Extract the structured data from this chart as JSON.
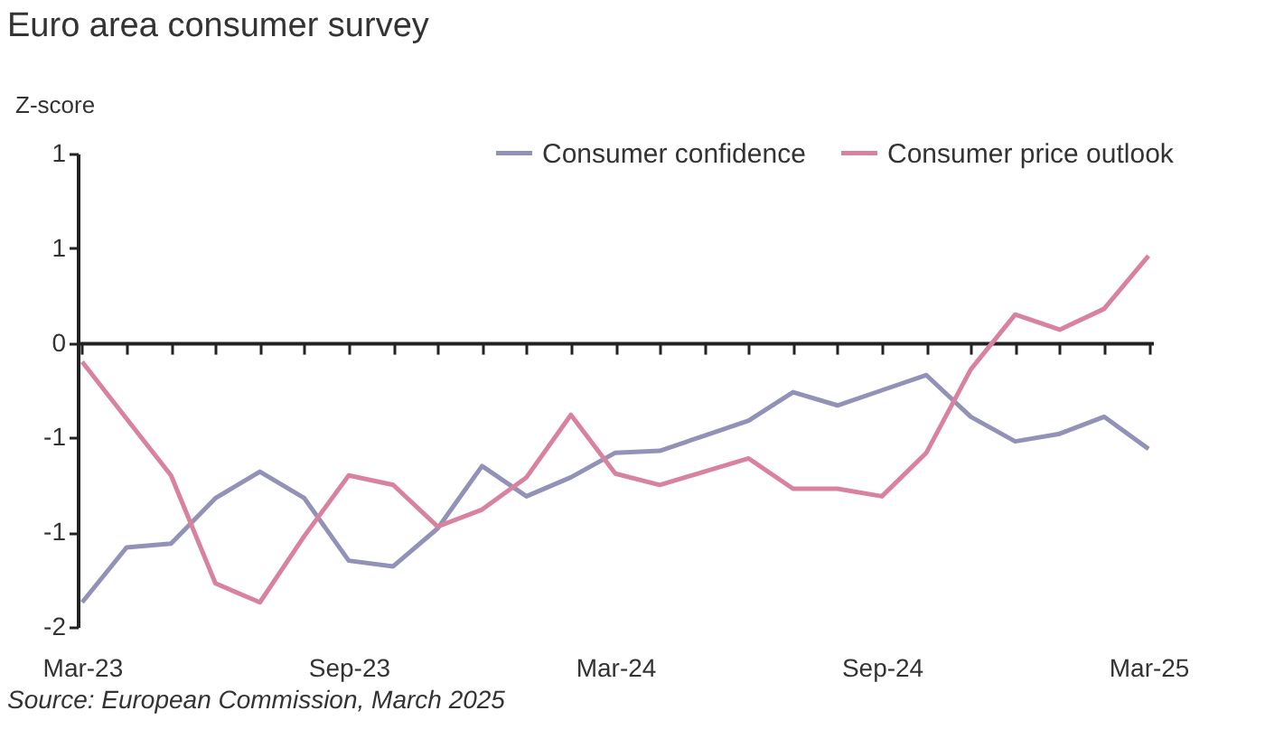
{
  "chart_data": {
    "type": "line",
    "title": "Euro area consumer survey",
    "ylabel": "Z-score",
    "categories": [
      "Mar-23",
      null,
      null,
      null,
      null,
      null,
      "Sep-23",
      null,
      null,
      null,
      null,
      null,
      "Mar-24",
      null,
      null,
      null,
      null,
      null,
      "Sep-24",
      null,
      null,
      null,
      null,
      null,
      "Mar-25"
    ],
    "series": [
      {
        "name": "Consumer confidence",
        "color": "#9292b9",
        "values": [
          -1.37,
          -1.08,
          -1.06,
          -0.82,
          -0.68,
          -0.82,
          -1.15,
          -1.18,
          -0.98,
          -0.65,
          -0.81,
          -0.71,
          -0.58,
          -0.57,
          -0.49,
          -0.41,
          -0.26,
          -0.33,
          -0.25,
          -0.17,
          -0.39,
          -0.52,
          -0.48,
          -0.39,
          -0.56
        ]
      },
      {
        "name": "Consumer price outlook",
        "color": "#d9829e",
        "values": [
          -0.1,
          -0.4,
          -0.7,
          -1.27,
          -1.37,
          -1.02,
          -0.7,
          -0.75,
          -0.97,
          -0.88,
          -0.71,
          -0.38,
          -0.69,
          -0.75,
          -0.68,
          -0.61,
          -0.77,
          -0.77,
          -0.81,
          -0.58,
          -0.14,
          0.15,
          0.07,
          0.18,
          0.46
        ]
      }
    ],
    "ylim": [
      -1.5,
      1.0
    ],
    "yticks": [
      {
        "value": 1.0,
        "label": "1"
      },
      {
        "value": 0.5,
        "label": "1"
      },
      {
        "value": 0,
        "label": "0"
      },
      {
        "value": -0.5,
        "label": "-1"
      },
      {
        "value": -1.0,
        "label": "-1"
      },
      {
        "value": -1.5,
        "label": "-2"
      }
    ],
    "legend": "top right",
    "line_style": "solid",
    "marker": "none",
    "annotations": [
      "Source: European Commission, March 2025"
    ]
  }
}
